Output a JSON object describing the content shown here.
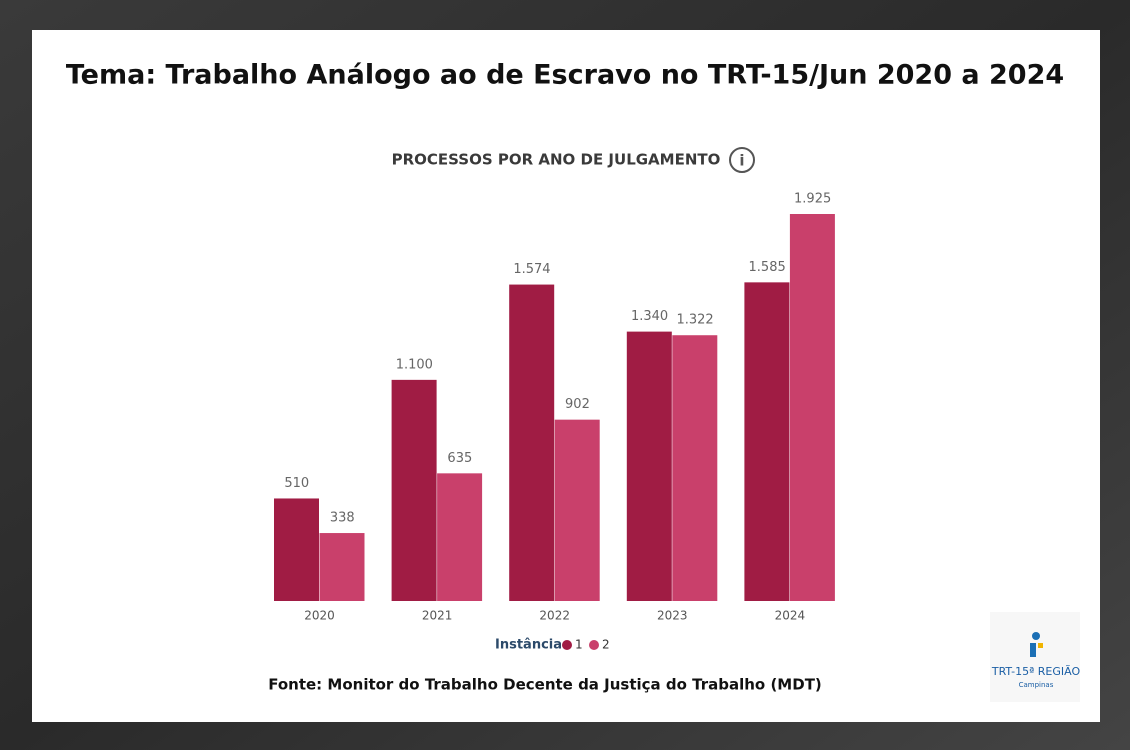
{
  "chart_data": {
    "type": "bar",
    "title": "Tema: Trabalho Análogo ao de Escravo no TRT-15/Jun 2020 a 2024",
    "subtitle": "PROCESSOS POR ANO DE JULGAMENTO",
    "categories": [
      "2020",
      "2021",
      "2022",
      "2023",
      "2024"
    ],
    "legend_title": "Instância",
    "series": [
      {
        "name": "1",
        "color": "#a01c44",
        "values": [
          510,
          1100,
          1574,
          1340,
          1585
        ],
        "value_labels": [
          "510",
          "1.100",
          "1.574",
          "1.340",
          "1.585"
        ]
      },
      {
        "name": "2",
        "color": "#c9406b",
        "values": [
          338,
          635,
          902,
          1322,
          1925
        ],
        "value_labels": [
          "338",
          "635",
          "902",
          "1.322",
          "1.925"
        ]
      }
    ],
    "source": "Fonte: Monitor do Trabalho Decente da Justiça do Trabalho (MDT)"
  },
  "logo": {
    "text": "TRT-15ª REGIÃO",
    "subtext": "Campinas"
  }
}
